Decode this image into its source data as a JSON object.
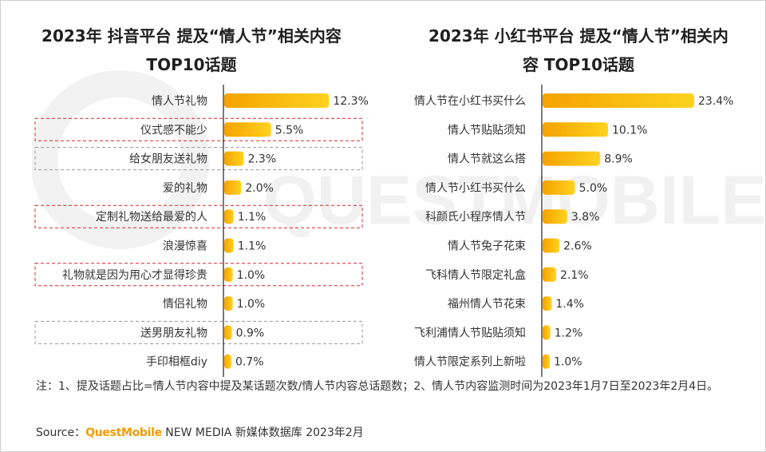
{
  "chart_data": [
    {
      "type": "bar",
      "orientation": "horizontal",
      "title": "2023年 抖音平台 提及“情人节”相关内容TOP10话题",
      "title_lines": [
        "2023年 抖音平台 提及“情人节”相关内容",
        "TOP10话题"
      ],
      "categories": [
        "情人节礼物",
        "仪式感不能少",
        "给女朋友送礼物",
        "爱的礼物",
        "定制礼物送给最爱的人",
        "浪漫惊喜",
        "礼物就是因为用心才显得珍贵",
        "情侣礼物",
        "送男朋友礼物",
        "手印相框diy"
      ],
      "values": [
        12.3,
        5.5,
        2.3,
        2.0,
        1.1,
        1.1,
        1.0,
        1.0,
        0.9,
        0.7
      ],
      "labels": [
        "12.3%",
        "5.5%",
        "2.3%",
        "2.0%",
        "1.1%",
        "1.1%",
        "1.0%",
        "1.0%",
        "0.9%",
        "0.7%"
      ],
      "highlight": [
        "none",
        "red-dashed",
        "gray-dashed",
        "none",
        "red-dashed",
        "none",
        "red-dashed",
        "none",
        "gray-dashed",
        "none"
      ],
      "xlim": [
        0,
        23.4
      ]
    },
    {
      "type": "bar",
      "orientation": "horizontal",
      "title": "2023年 小红书平台 提及“情人节”相关内容 TOP10话题",
      "title_lines": [
        "2023年 小红书平台 提及“情人节”相关内",
        "容 TOP10话题"
      ],
      "categories": [
        "情人节在小红书买什么",
        "情人节贴贴须知",
        "情人节就这么搭",
        "情人节小红书买什么",
        "科颜氏小程序情人节",
        "情人节兔子花束",
        "飞科情人节限定礼盒",
        "福州情人节花束",
        "飞利浦情人节贴贴须知",
        "情人节限定系列上新啦"
      ],
      "values": [
        23.4,
        10.1,
        8.9,
        5.0,
        3.8,
        2.6,
        2.1,
        1.4,
        1.2,
        1.0
      ],
      "labels": [
        "23.4%",
        "10.1%",
        "8.9%",
        "5.0%",
        "3.8%",
        "2.6%",
        "2.1%",
        "1.4%",
        "1.2%",
        "1.0%"
      ],
      "highlight": [
        "none",
        "none",
        "none",
        "none",
        "none",
        "none",
        "none",
        "none",
        "none",
        "none"
      ],
      "xlim": [
        0,
        23.4
      ]
    }
  ],
  "colors": {
    "bar_start": "#f5a300",
    "bar_end": "#ffd21f",
    "red_box": "#d9252a",
    "gray_box": "#9a9a9a",
    "brand": "#f29b05"
  },
  "footer": {
    "note": "注：1、提及话题占比=情人节内容中提及某话题次数/情人节内容总话题数；2、情人节内容监测时间为2023年1月7日至2023年2月4日。",
    "source_label": "Source：",
    "source_brand": "QuestMobile",
    "source_rest": " NEW MEDIA 新媒体数据库 2023年2月"
  },
  "watermark_text": "QUESTMOBILE"
}
